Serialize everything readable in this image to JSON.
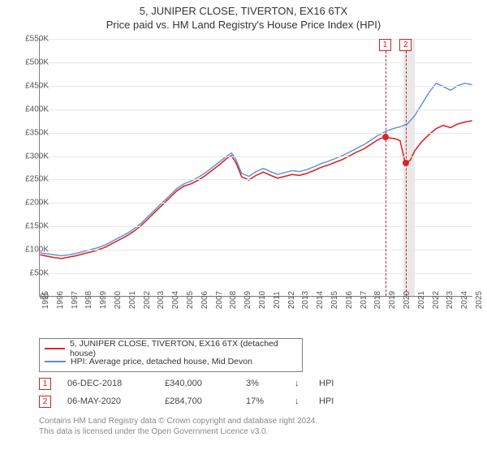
{
  "title": {
    "line1": "5, JUNIPER CLOSE, TIVERTON, EX16 6TX",
    "line2": "Price paid vs. HM Land Registry's House Price Index (HPI)"
  },
  "chart": {
    "type": "line",
    "background_color": "#ffffff",
    "grid_color": "#e8e8e8",
    "axis_color": "#808080",
    "x_range": [
      1995,
      2025
    ],
    "y_range": [
      0,
      550000
    ],
    "y_ticks": [
      0,
      50000,
      100000,
      150000,
      200000,
      250000,
      300000,
      350000,
      400000,
      450000,
      500000,
      550000
    ],
    "y_tick_labels": [
      "£0",
      "£50K",
      "£100K",
      "£150K",
      "£200K",
      "£250K",
      "£300K",
      "£350K",
      "£400K",
      "£450K",
      "£500K",
      "£550K"
    ],
    "x_ticks": [
      1995,
      1996,
      1997,
      1998,
      1999,
      2000,
      2001,
      2002,
      2003,
      2004,
      2005,
      2006,
      2007,
      2008,
      2009,
      2010,
      2011,
      2012,
      2013,
      2014,
      2015,
      2016,
      2017,
      2018,
      2019,
      2020,
      2021,
      2022,
      2023,
      2024,
      2025
    ],
    "shaded_band": {
      "x_start": 2020.15,
      "x_end": 2020.95,
      "color": "#e9e9e9"
    },
    "series": [
      {
        "name": "property",
        "label": "5, JUNIPER CLOSE, TIVERTON, EX16 6TX (detached house)",
        "color": "#dc2626",
        "width": 1.6,
        "points": [
          [
            1995.0,
            88000
          ],
          [
            1995.5,
            85000
          ],
          [
            1996.0,
            82000
          ],
          [
            1996.5,
            80000
          ],
          [
            1997.0,
            83000
          ],
          [
            1997.5,
            86000
          ],
          [
            1998.0,
            90000
          ],
          [
            1998.5,
            94000
          ],
          [
            1999.0,
            98000
          ],
          [
            1999.5,
            104000
          ],
          [
            2000.0,
            112000
          ],
          [
            2000.5,
            120000
          ],
          [
            2001.0,
            128000
          ],
          [
            2001.5,
            138000
          ],
          [
            2002.0,
            150000
          ],
          [
            2002.5,
            165000
          ],
          [
            2003.0,
            180000
          ],
          [
            2003.5,
            195000
          ],
          [
            2004.0,
            210000
          ],
          [
            2004.5,
            225000
          ],
          [
            2005.0,
            235000
          ],
          [
            2005.5,
            240000
          ],
          [
            2006.0,
            248000
          ],
          [
            2006.5,
            258000
          ],
          [
            2007.0,
            270000
          ],
          [
            2007.5,
            282000
          ],
          [
            2008.0,
            295000
          ],
          [
            2008.3,
            300000
          ],
          [
            2008.6,
            285000
          ],
          [
            2009.0,
            255000
          ],
          [
            2009.5,
            248000
          ],
          [
            2010.0,
            258000
          ],
          [
            2010.5,
            265000
          ],
          [
            2011.0,
            258000
          ],
          [
            2011.5,
            252000
          ],
          [
            2012.0,
            256000
          ],
          [
            2012.5,
            260000
          ],
          [
            2013.0,
            258000
          ],
          [
            2013.5,
            262000
          ],
          [
            2014.0,
            268000
          ],
          [
            2014.5,
            275000
          ],
          [
            2015.0,
            280000
          ],
          [
            2015.5,
            286000
          ],
          [
            2016.0,
            292000
          ],
          [
            2016.5,
            300000
          ],
          [
            2017.0,
            308000
          ],
          [
            2017.5,
            315000
          ],
          [
            2018.0,
            325000
          ],
          [
            2018.5,
            335000
          ],
          [
            2018.93,
            340000
          ],
          [
            2019.3,
            338000
          ],
          [
            2019.7,
            336000
          ],
          [
            2020.0,
            332000
          ],
          [
            2020.35,
            284700
          ],
          [
            2020.7,
            290000
          ],
          [
            2021.0,
            310000
          ],
          [
            2021.5,
            330000
          ],
          [
            2022.0,
            345000
          ],
          [
            2022.5,
            358000
          ],
          [
            2023.0,
            365000
          ],
          [
            2023.5,
            360000
          ],
          [
            2024.0,
            368000
          ],
          [
            2024.5,
            372000
          ],
          [
            2025.0,
            375000
          ]
        ]
      },
      {
        "name": "hpi",
        "label": "HPI: Average price, detached house, Mid Devon",
        "color": "#5b8dd6",
        "width": 1.4,
        "points": [
          [
            1995.0,
            92000
          ],
          [
            1995.5,
            90000
          ],
          [
            1996.0,
            88000
          ],
          [
            1996.5,
            86000
          ],
          [
            1997.0,
            88000
          ],
          [
            1997.5,
            91000
          ],
          [
            1998.0,
            95000
          ],
          [
            1998.5,
            99000
          ],
          [
            1999.0,
            103000
          ],
          [
            1999.5,
            109000
          ],
          [
            2000.0,
            117000
          ],
          [
            2000.5,
            125000
          ],
          [
            2001.0,
            133000
          ],
          [
            2001.5,
            143000
          ],
          [
            2002.0,
            155000
          ],
          [
            2002.5,
            170000
          ],
          [
            2003.0,
            185000
          ],
          [
            2003.5,
            200000
          ],
          [
            2004.0,
            215000
          ],
          [
            2004.5,
            230000
          ],
          [
            2005.0,
            240000
          ],
          [
            2005.5,
            246000
          ],
          [
            2006.0,
            254000
          ],
          [
            2006.5,
            264000
          ],
          [
            2007.0,
            276000
          ],
          [
            2007.5,
            288000
          ],
          [
            2008.0,
            300000
          ],
          [
            2008.3,
            306000
          ],
          [
            2008.6,
            292000
          ],
          [
            2009.0,
            262000
          ],
          [
            2009.5,
            256000
          ],
          [
            2010.0,
            266000
          ],
          [
            2010.5,
            273000
          ],
          [
            2011.0,
            266000
          ],
          [
            2011.5,
            260000
          ],
          [
            2012.0,
            264000
          ],
          [
            2012.5,
            268000
          ],
          [
            2013.0,
            266000
          ],
          [
            2013.5,
            270000
          ],
          [
            2014.0,
            276000
          ],
          [
            2014.5,
            283000
          ],
          [
            2015.0,
            288000
          ],
          [
            2015.5,
            294000
          ],
          [
            2016.0,
            300000
          ],
          [
            2016.5,
            308000
          ],
          [
            2017.0,
            316000
          ],
          [
            2017.5,
            324000
          ],
          [
            2018.0,
            334000
          ],
          [
            2018.5,
            344000
          ],
          [
            2019.0,
            352000
          ],
          [
            2019.5,
            358000
          ],
          [
            2020.0,
            362000
          ],
          [
            2020.5,
            368000
          ],
          [
            2021.0,
            385000
          ],
          [
            2021.5,
            410000
          ],
          [
            2022.0,
            435000
          ],
          [
            2022.5,
            455000
          ],
          [
            2023.0,
            448000
          ],
          [
            2023.5,
            440000
          ],
          [
            2024.0,
            450000
          ],
          [
            2024.5,
            455000
          ],
          [
            2025.0,
            452000
          ]
        ]
      }
    ],
    "sale_markers": [
      {
        "id": "1",
        "x": 2018.93,
        "y": 340000
      },
      {
        "id": "2",
        "x": 2020.35,
        "y": 284700
      }
    ]
  },
  "legend": {
    "items": [
      {
        "color": "#dc2626",
        "label": "5, JUNIPER CLOSE, TIVERTON, EX16 6TX (detached house)"
      },
      {
        "color": "#5b8dd6",
        "label": "HPI: Average price, detached house, Mid Devon"
      }
    ]
  },
  "sales": [
    {
      "id": "1",
      "date": "06-DEC-2018",
      "price": "£340,000",
      "change": "3%",
      "arrow": "↓",
      "hpi": "HPI"
    },
    {
      "id": "2",
      "date": "06-MAY-2020",
      "price": "£284,700",
      "change": "17%",
      "arrow": "↓",
      "hpi": "HPI"
    }
  ],
  "footer": {
    "line1": "Contains HM Land Registry data © Crown copyright and database right 2024.",
    "line2": "This data is licensed under the Open Government Licence v3.0."
  }
}
